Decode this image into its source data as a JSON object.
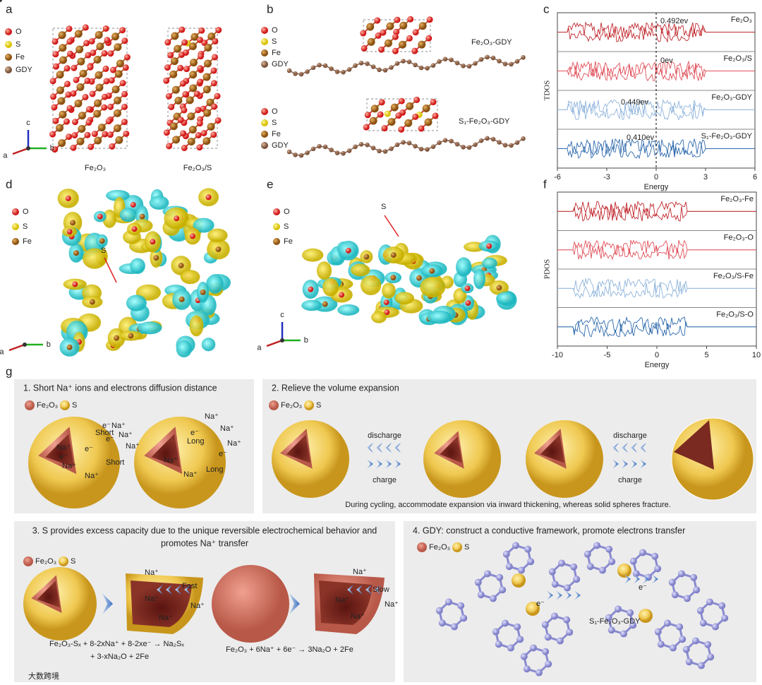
{
  "panel_labels": [
    "a",
    "b",
    "c",
    "d",
    "e",
    "f",
    "g"
  ],
  "a": {
    "legend": [
      "O",
      "S",
      "Fe",
      "GDY"
    ],
    "axes": [
      "c",
      "a",
      "b"
    ],
    "captions": [
      "Fe₂O₃",
      "Fe₂O₃/S"
    ]
  },
  "b": {
    "legend_top": [
      "O",
      "S",
      "Fe",
      "GDY"
    ],
    "legend_bottom": [
      "O",
      "S",
      "Fe",
      "GDY"
    ],
    "labels": [
      "Fe₂O₃-GDY",
      "S₁-Fe₂O₃-GDY"
    ]
  },
  "c": {
    "ylabel": "TDOS",
    "xlabel": "Energy",
    "xlim": [
      -6,
      6
    ],
    "xticks": [
      -6,
      -3,
      0,
      3,
      6
    ],
    "traces": [
      {
        "name": "Fe₂O₃",
        "color": "#c0282d",
        "gap": "0.492ev"
      },
      {
        "name": "Fe₂O₃/S",
        "color": "#e0505a",
        "gap": "0ev"
      },
      {
        "name": "Fe₂O₃-GDY",
        "color": "#8fb4dc",
        "gap": "0.449ev"
      },
      {
        "name": "S₁-Fe₂O₃-GDY",
        "color": "#2e6aad",
        "gap": "0.410ev"
      }
    ]
  },
  "d": {
    "legend": [
      "O",
      "S",
      "Fe"
    ],
    "annotation": "S",
    "axes": [
      "b",
      "a"
    ]
  },
  "e": {
    "legend": [
      "O",
      "S",
      "Fe"
    ],
    "annotation": "S",
    "axes": [
      "c",
      "a",
      "b"
    ]
  },
  "f": {
    "ylabel": "PDOS",
    "xlabel": "Energy",
    "xlim": [
      -10,
      10
    ],
    "xticks": [
      -10,
      -5,
      0,
      5,
      10
    ],
    "traces": [
      {
        "name": "Fe₂O₃-Fe",
        "color": "#c0282d"
      },
      {
        "name": "Fe₂O₃-O",
        "color": "#e0505a"
      },
      {
        "name": "Fe₂O₃/S-Fe",
        "color": "#8fb4dc"
      },
      {
        "name": "Fe₂O₃/S-O",
        "color": "#2e6aad"
      }
    ]
  },
  "g": {
    "box1": {
      "title": "1. Short Na⁺ ions and electrons diffusion distance",
      "legend": [
        "Fe₂O₃",
        "S"
      ],
      "left_labels": [
        "Na⁺",
        "e⁻",
        "Na⁺",
        "Na⁺",
        "e⁻",
        "Short",
        "e⁻",
        "Na⁺",
        "Na⁺",
        "e⁻",
        "Na⁺",
        "Short"
      ],
      "right_labels": [
        "Na⁺",
        "Long",
        "e⁻",
        "Na⁺",
        "Na⁺",
        "e⁻",
        "Na⁺",
        "Long",
        "Na⁺"
      ]
    },
    "box2": {
      "title": "2. Relieve the volume expansion",
      "legend": [
        "Fe₂O₃",
        "S"
      ],
      "arrows": [
        "discharge",
        "charge",
        "discharge",
        "charge"
      ],
      "caption": "During cycling, accommodate expansion via inward thickening, whereas solid spheres fracture."
    },
    "box3": {
      "title": [
        "3. S provides excess capacity due to the unique reversible electrochemical behavior and",
        "promotes Na⁺ transfer"
      ],
      "legend": [
        "Fe₂O₃",
        "S"
      ],
      "labels": [
        "Na⁺",
        "Na⁺",
        "Na⁺",
        "Na⁺",
        "Fast",
        "Na⁺",
        "Na⁺",
        "Na⁺",
        "Na⁺",
        "Slow"
      ],
      "equation_1": [
        "Fe₂O₃-Sₓ + 8-2xNa⁺ + 8-2xe⁻ → Na₂Sₓ",
        "+ 3-xNa₂O + 2Fe"
      ],
      "equation_2": "Fe₂O₃ + 6Na⁺ + 6e⁻ → 3Na₂O + 2Fe"
    },
    "box4": {
      "title": "4. GDY: construct a conductive framework, promote electrons transfer",
      "legend": [
        "Fe₂O₃",
        "S"
      ],
      "electrons": [
        "e⁻",
        "e⁻"
      ],
      "label": "S₁-Fe₂O₃-GDY"
    }
  },
  "watermark": "大数跨境"
}
